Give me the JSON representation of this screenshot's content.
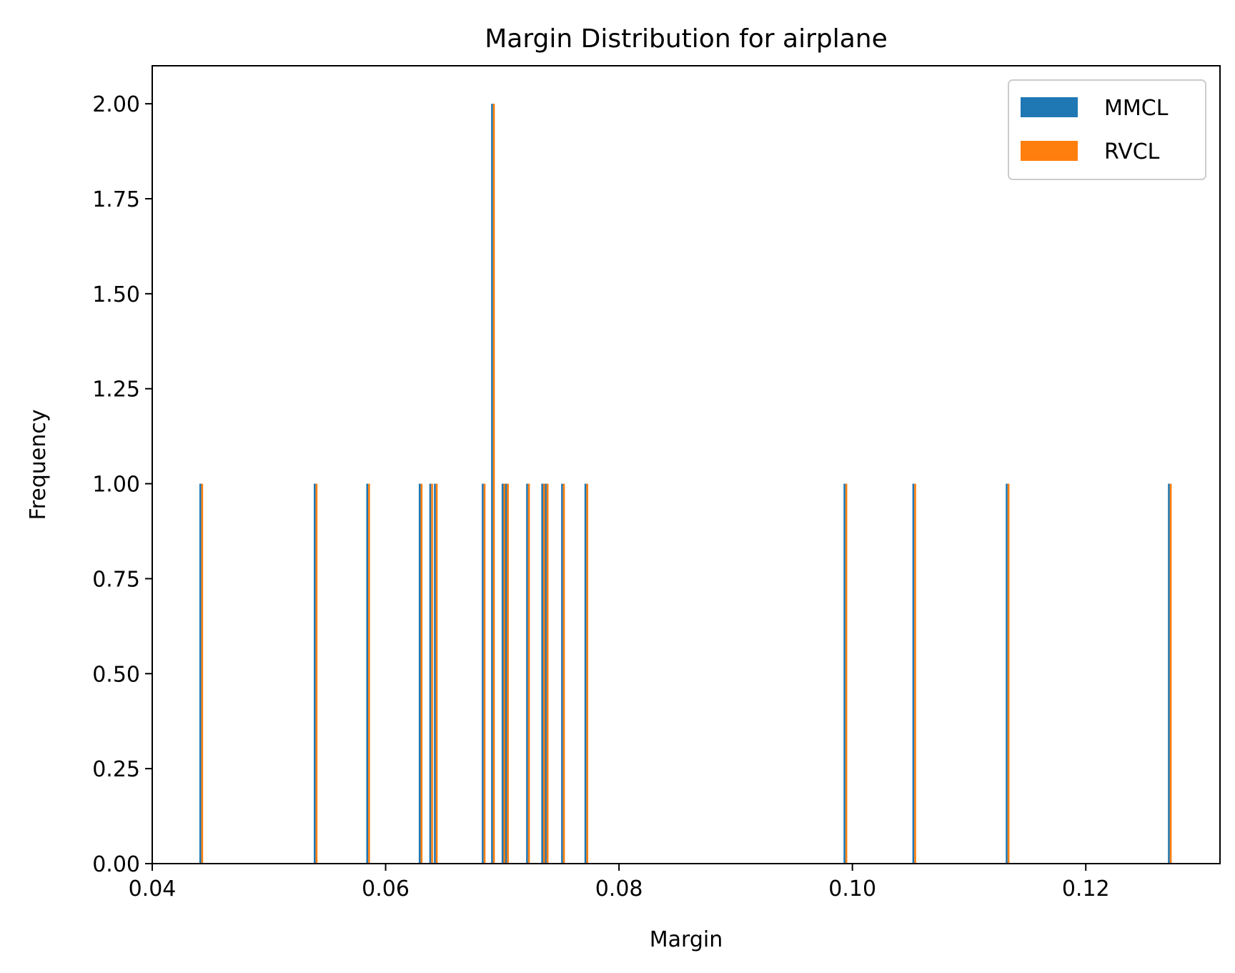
{
  "chart_data": {
    "type": "bar",
    "title": "Margin Distribution for airplane",
    "xlabel": "Margin",
    "ylabel": "Frequency",
    "xlim": [
      0.04,
      0.1315
    ],
    "ylim": [
      0,
      2.1
    ],
    "xticks": [
      0.04,
      0.06,
      0.08,
      0.1,
      0.12
    ],
    "xtick_labels": [
      "0.04",
      "0.06",
      "0.08",
      "0.10",
      "0.12"
    ],
    "yticks": [
      0,
      0.25,
      0.5,
      0.75,
      1.0,
      1.25,
      1.5,
      1.75,
      2.0
    ],
    "ytick_labels": [
      "0.00",
      "0.25",
      "0.50",
      "0.75",
      "1.00",
      "1.25",
      "1.50",
      "1.75",
      "2.00"
    ],
    "grid": false,
    "legend": "top-right",
    "series": [
      {
        "name": "MMCL",
        "color": "#1f77b4",
        "x": [
          0.0442,
          0.054,
          0.0585,
          0.063,
          0.0639,
          0.0643,
          0.0684,
          0.0692,
          0.0701,
          0.0704,
          0.0722,
          0.0735,
          0.0738,
          0.0752,
          0.0772,
          0.0994,
          0.1053,
          0.1133,
          0.1272
        ],
        "values": [
          1,
          1,
          1,
          1,
          1,
          1,
          1,
          2,
          1,
          1,
          1,
          1,
          1,
          1,
          1,
          1,
          1,
          1,
          1
        ]
      },
      {
        "name": "RVCL",
        "color": "#ff7f0e",
        "x": [
          0.0442,
          0.054,
          0.0585,
          0.063,
          0.0639,
          0.0643,
          0.0684,
          0.0692,
          0.0701,
          0.0704,
          0.0722,
          0.0735,
          0.0738,
          0.0752,
          0.0772,
          0.0994,
          0.1053,
          0.1133,
          0.1272
        ],
        "values": [
          1,
          1,
          1,
          1,
          1,
          1,
          1,
          2,
          1,
          1,
          1,
          1,
          1,
          1,
          1,
          1,
          1,
          1,
          1
        ]
      }
    ]
  }
}
